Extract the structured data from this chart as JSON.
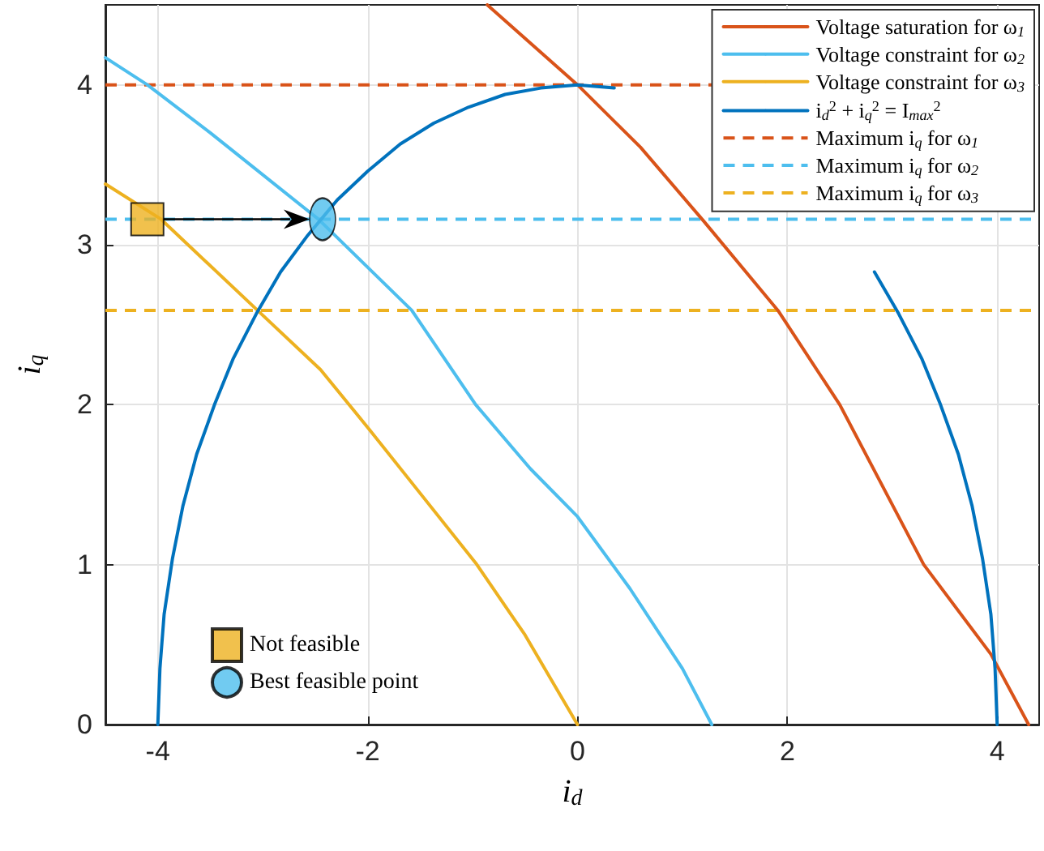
{
  "chart_data": {
    "type": "line",
    "xlabel": "i$_{d}$",
    "ylabel": "i$_{q}$",
    "xlim": [
      -4.5,
      4.4
    ],
    "xticks": [
      -4,
      -2,
      0,
      2,
      4
    ],
    "ylim": [
      0,
      4.5
    ],
    "yticks": [
      0,
      1,
      2,
      3,
      4
    ],
    "grid": true,
    "legend": "top right",
    "marker": "none",
    "line_style": "solid",
    "series": [
      {
        "name": "Voltage saturation for ω$_{1}$",
        "color": "#d95319",
        "x": [
          -0.86,
          0,
          0.6,
          1.2,
          1.91,
          2.5,
          3.3,
          3.94,
          4.3
        ],
        "values": [
          4.5,
          4,
          3.61,
          3.15,
          2.59,
          2,
          1,
          0.44,
          0
        ]
      },
      {
        "name": "Voltage constraint for ω$_{2}$",
        "color": "#4dbeee",
        "x": [
          -4.5,
          -4.1,
          -3.5,
          -2.47,
          -1.58,
          -0.97,
          -0.45,
          0,
          0.5,
          1.0,
          1.28
        ],
        "values": [
          4.17,
          4,
          3.7,
          3.16,
          2.59,
          2,
          1.6,
          1.3,
          0.85,
          0.35,
          0
        ]
      },
      {
        "name": "Voltage constraint for ω$_{3}$",
        "color": "#edb120",
        "x": [
          -4.5,
          -3.97,
          -3.05,
          -2.45,
          -1.99,
          -0.97,
          -0.5,
          0
        ],
        "values": [
          3.38,
          3.16,
          2.59,
          2.22,
          1.85,
          1.01,
          0.56,
          0
        ]
      },
      {
        "name": "i$_{d}$$^{2}$ + i$_{q}$$^{2}$ = I$_{max}$$^{2}$",
        "color": "#0072bd",
        "x": [
          -4,
          -3.98,
          -3.94,
          -3.86,
          -3.76,
          -3.63,
          -3.46,
          -3.28,
          -3.06,
          -2.83,
          -2.57,
          -2.29,
          -2,
          -1.69,
          -1.37,
          -1.04,
          -0.69,
          -0.35,
          0,
          0.35,
          0.69,
          1.04,
          1.37,
          1.69,
          2,
          2.29,
          2.57,
          2.83,
          3.06,
          3.28,
          3.46,
          3.63,
          3.76,
          3.86,
          3.94,
          3.98,
          4
        ],
        "values": [
          0,
          0.35,
          0.69,
          1.04,
          1.37,
          1.69,
          2,
          2.29,
          2.57,
          2.83,
          3.06,
          3.28,
          3.46,
          3.63,
          3.76,
          3.86,
          3.94,
          3.98,
          4,
          3.98,
          null,
          null,
          null,
          null,
          null,
          null,
          null,
          2.83,
          2.57,
          2.29,
          2,
          1.69,
          1.37,
          1.04,
          0.69,
          0.35,
          0
        ]
      },
      {
        "name": "Not feasible",
        "type": "scatter",
        "marker": "square",
        "color": "#edb120",
        "x": [
          -4.1
        ],
        "values": [
          3.16
        ]
      },
      {
        "name": "Best feasible point",
        "type": "scatter",
        "marker": "circle",
        "color": "#4dbeee",
        "x": [
          -2.43
        ],
        "values": [
          3.16
        ]
      }
    ],
    "ref_lines": [
      {
        "axis": "y",
        "value": 4,
        "label": "Maximum i$_{q}$ for ω$_{1}$",
        "color": "#d95319",
        "line_style": "dashed"
      },
      {
        "axis": "y",
        "value": 3.16,
        "label": "Maximum i$_{q}$ for ω$_{2}$",
        "color": "#4dbeee",
        "line_style": "dashed"
      },
      {
        "axis": "y",
        "value": 2.59,
        "label": "Maximum i$_{q}$ for ω$_{3}$",
        "color": "#edb120",
        "line_style": "dashed"
      }
    ]
  }
}
